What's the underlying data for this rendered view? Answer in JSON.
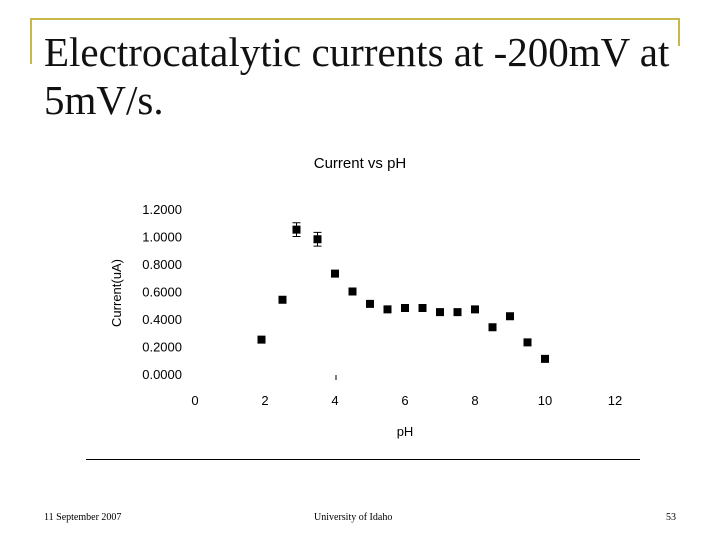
{
  "slide": {
    "title": "Electrocatalytic currents at -200mV at 5mV/s."
  },
  "footer": {
    "date": "11 September 2007",
    "organization": "University of Idaho",
    "page_number": "53"
  },
  "chart_data": {
    "type": "scatter",
    "title": "Current vs pH",
    "xlabel": "pH",
    "ylabel": "Current(uA)",
    "xlim": [
      0,
      12
    ],
    "ylim": [
      0,
      1.2
    ],
    "x_ticks": [
      "0",
      "2",
      "4",
      "6",
      "8",
      "10",
      "12"
    ],
    "y_ticks": [
      "0.0000",
      "0.2000",
      "0.4000",
      "0.6000",
      "0.8000",
      "1.0000",
      "1.2000"
    ],
    "grid": false,
    "legend": "none",
    "series": [
      {
        "x": [
          1.9,
          2.5,
          2.9,
          3.5,
          4.0,
          4.5,
          5.0,
          5.5,
          6.0,
          6.5,
          7.0,
          7.5,
          8.0,
          8.5,
          9.0,
          9.5,
          10.0
        ],
        "y": [
          0.25,
          0.54,
          1.05,
          0.98,
          0.73,
          0.6,
          0.51,
          0.47,
          0.48,
          0.48,
          0.45,
          0.45,
          0.47,
          0.34,
          0.42,
          0.23,
          0.11
        ],
        "error": [
          0.01,
          0.01,
          0.05,
          0.05,
          0.02,
          0.01,
          0.01,
          0.01,
          0.01,
          0.01,
          0.01,
          0.01,
          0.01,
          0.01,
          0.01,
          0.01,
          0.01
        ]
      }
    ]
  }
}
